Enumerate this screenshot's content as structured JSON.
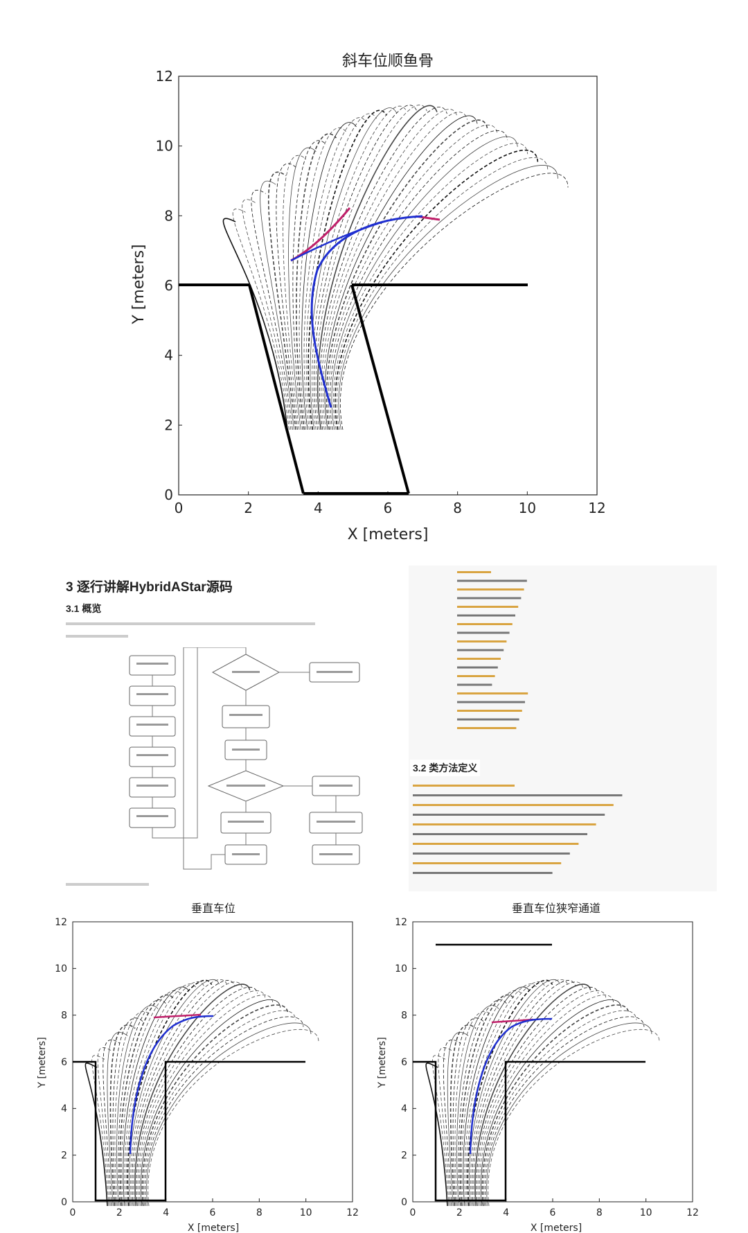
{
  "charts": {
    "top": {
      "title": "斜车位顺鱼骨",
      "xlabel": "X [meters]",
      "ylabel": "Y [meters]",
      "xticks": [
        "0",
        "2",
        "4",
        "6",
        "8",
        "10",
        "12"
      ],
      "yticks": [
        "0",
        "2",
        "4",
        "6",
        "8",
        "10",
        "12"
      ]
    },
    "bottom_left": {
      "title": "垂直车位",
      "xlabel": "X [meters]",
      "ylabel": "Y [meters]",
      "xticks": [
        "0",
        "2",
        "4",
        "6",
        "8",
        "10",
        "12"
      ],
      "yticks": [
        "0",
        "2",
        "4",
        "6",
        "8",
        "10",
        "12"
      ]
    },
    "bottom_right": {
      "title": "垂直车位狭窄通道",
      "xlabel": "X [meters]",
      "ylabel": "Y [meters]",
      "xticks": [
        "0",
        "2",
        "4",
        "6",
        "8",
        "10",
        "12"
      ],
      "yticks": [
        "0",
        "2",
        "4",
        "6",
        "8",
        "10",
        "12"
      ]
    }
  },
  "doc": {
    "title": "3 逐行讲解HybridAStar源码",
    "section_overview": "3.1 概览",
    "section_methods": "3.2 类方法定义"
  },
  "colors": {
    "path_blue": "#1f2fd0",
    "path_red": "#c0206a",
    "obstacle": "#000000"
  }
}
